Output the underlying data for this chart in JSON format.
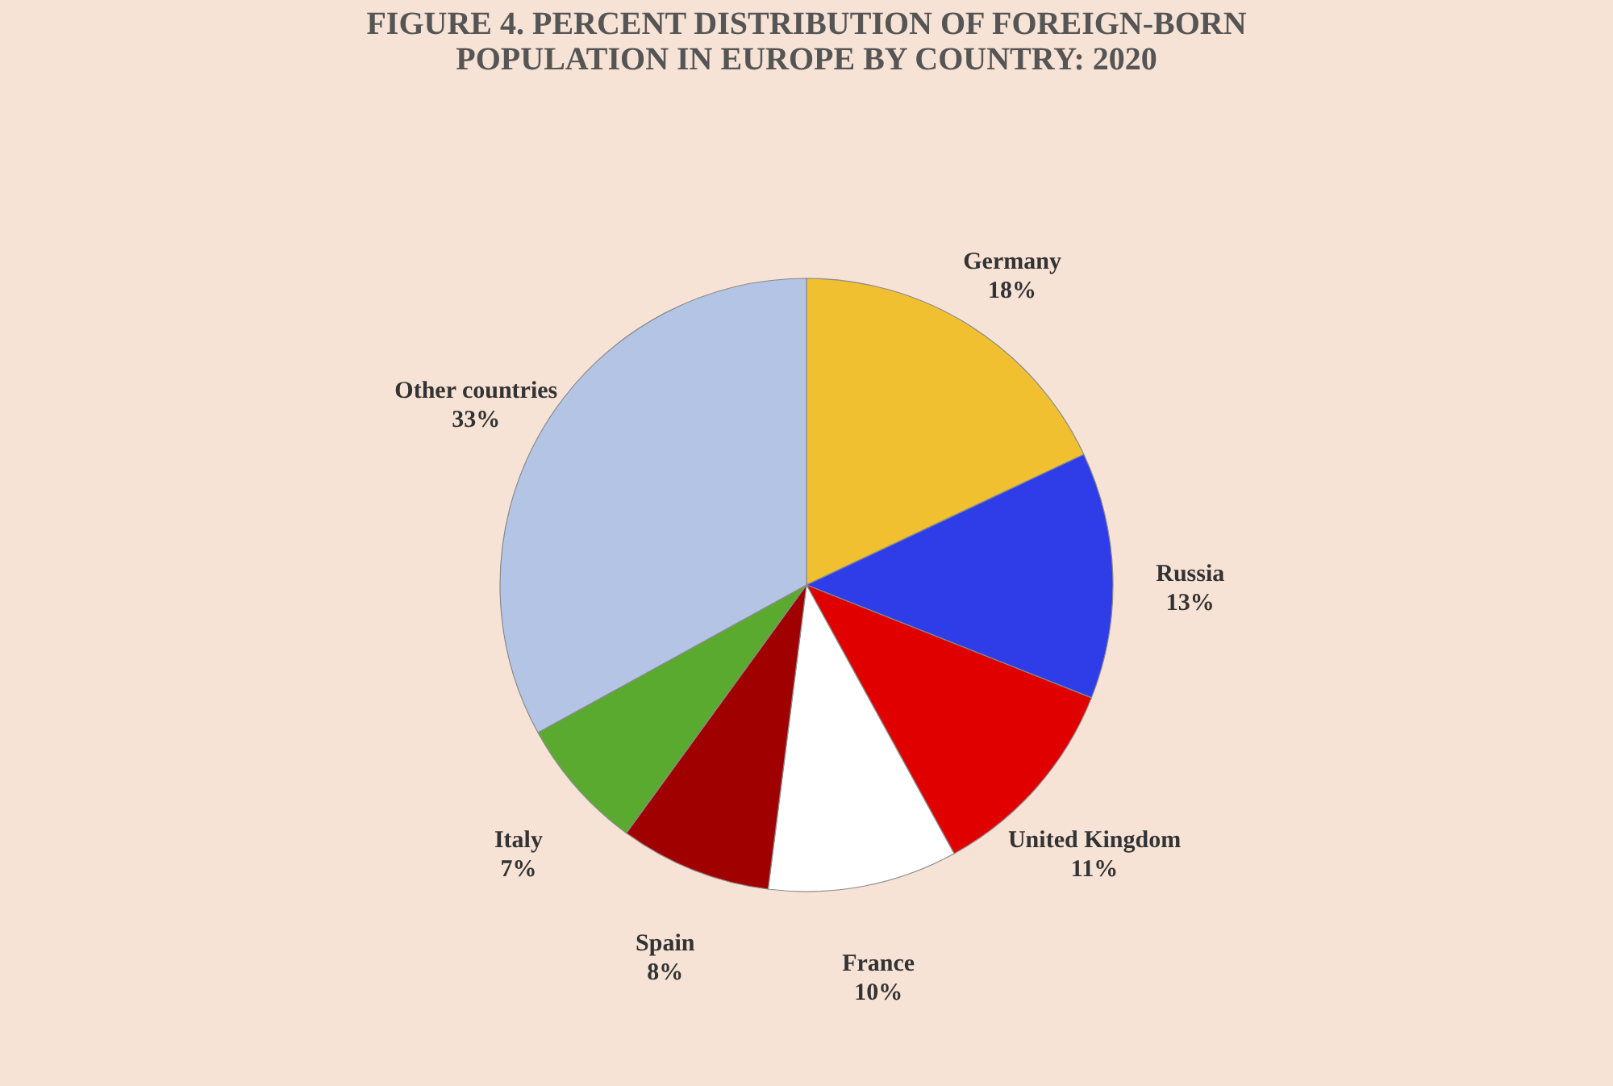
{
  "chart_data": {
    "type": "pie",
    "title": "FIGURE 4. PERCENT DISTRIBUTION OF FOREIGN-BORN POPULATION IN EUROPE BY COUNTRY: 2020",
    "categories": [
      "Germany",
      "Russia",
      "United Kingdom",
      "France",
      "Spain",
      "Italy",
      "Other countries"
    ],
    "values": [
      18,
      13,
      11,
      10,
      8,
      7,
      33
    ],
    "value_labels": [
      "18%",
      "13%",
      "11%",
      "10%",
      "8%",
      "7%",
      "33%"
    ],
    "colors": [
      "#f0c030",
      "#2e3de8",
      "#e00000",
      "#ffffff",
      "#a00000",
      "#5aaa30",
      "#b4c4e4"
    ]
  }
}
